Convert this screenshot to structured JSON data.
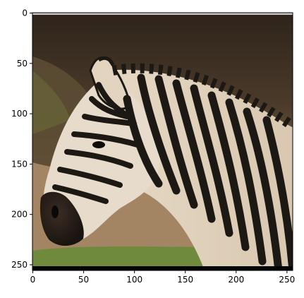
{
  "figure": {
    "x_ticks": [
      "0",
      "50",
      "100",
      "150",
      "200",
      "250"
    ],
    "y_ticks": [
      "0",
      "50",
      "100",
      "150",
      "200",
      "250"
    ]
  },
  "image": {
    "subject": "zebra head and neck, side profile",
    "colors": {
      "sky": "#3b3024",
      "hill": "#6e5a3e",
      "ground": "#a48563",
      "grass": "#6f8a3d",
      "stripe_dark": "#1c1814",
      "stripe_light": "#e7dccb",
      "muzzle": "#2a211c"
    }
  }
}
